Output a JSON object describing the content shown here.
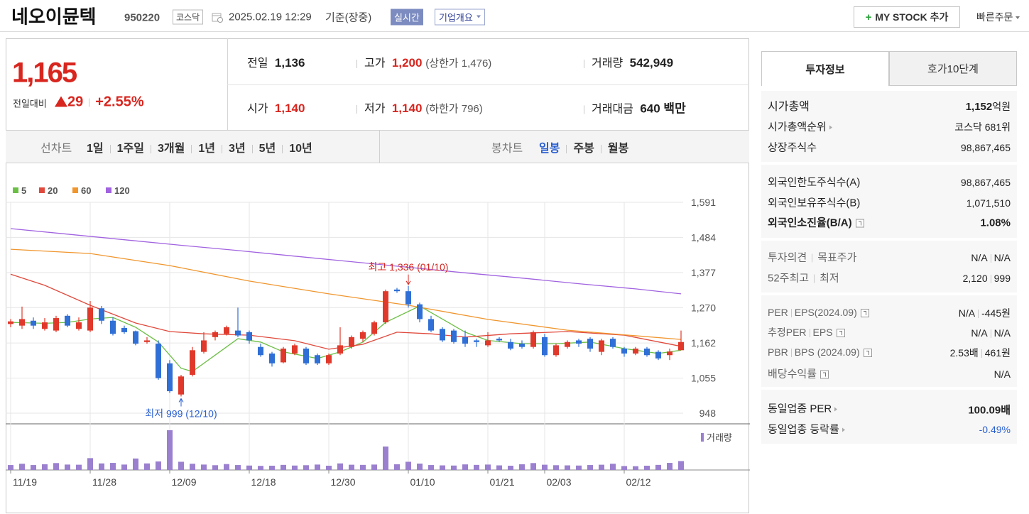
{
  "header": {
    "name": "네오이뮨텍",
    "code": "950220",
    "market": "코스닥",
    "datetime": "2025.02.19 12:29",
    "basis": "기준(장중)",
    "realtime": "실시간",
    "company": "기업개요",
    "my_stock": "MY STOCK 추가",
    "quick_order": "빠른주문"
  },
  "quote": {
    "price": "1,165",
    "change_label": "전일대비",
    "change": "29",
    "change_pct": "+2.55%",
    "stats": [
      {
        "label": "전일",
        "value": "1,136"
      },
      {
        "label": "고가",
        "value": "1,200",
        "note": "(상한가 1,476)"
      },
      {
        "label": "거래량",
        "value": "542,949"
      },
      {
        "label": "시가",
        "value": "1,140"
      },
      {
        "label": "저가",
        "value": "1,140",
        "note": "(하한가 796)"
      },
      {
        "label": "거래대금",
        "value": "640 백만"
      }
    ]
  },
  "period_tabs": {
    "line_chart": "선차트",
    "line_periods": [
      "1일",
      "1주일",
      "3개월",
      "1년",
      "3년",
      "5년",
      "10년"
    ],
    "candle_chart": "봉차트",
    "candle_periods": [
      "일봉",
      "주봉",
      "월봉"
    ]
  },
  "chart_data": {
    "type": "candlestick",
    "categories": [
      "11/19",
      null,
      null,
      null,
      null,
      null,
      null,
      "11/28",
      null,
      null,
      null,
      null,
      null,
      null,
      "12/09",
      null,
      null,
      null,
      null,
      null,
      null,
      "12/18",
      null,
      null,
      null,
      null,
      null,
      null,
      "12/30",
      null,
      null,
      null,
      null,
      null,
      null,
      "01/10",
      null,
      null,
      null,
      null,
      null,
      null,
      "01/21",
      null,
      null,
      null,
      null,
      "02/03",
      null,
      null,
      null,
      null,
      null,
      null,
      "02/12",
      null,
      null,
      null,
      null,
      null
    ],
    "open": [
      1220,
      1215,
      1230,
      1205,
      1200,
      1245,
      1205,
      1200,
      1268,
      1230,
      1208,
      1198,
      1165,
      1160,
      1100,
      1005,
      1065,
      1135,
      1180,
      1190,
      1200,
      1195,
      1150,
      1130,
      1103,
      1130,
      1145,
      1125,
      1100,
      1130,
      1150,
      1175,
      1190,
      1225,
      1325,
      1320,
      1280,
      1235,
      1205,
      1200,
      1180,
      1170,
      1155,
      1175,
      1165,
      1160,
      1150,
      1180,
      1125,
      1150,
      1170,
      1175,
      1135,
      1175,
      1145,
      1130,
      1145,
      1135,
      1125,
      1140
    ],
    "high": [
      1235,
      1273,
      1240,
      1238,
      1245,
      1250,
      1240,
      1290,
      1275,
      1240,
      1215,
      1200,
      1180,
      1170,
      1110,
      1065,
      1150,
      1195,
      1200,
      1215,
      1270,
      1200,
      1160,
      1135,
      1150,
      1160,
      1150,
      1130,
      1130,
      1210,
      1185,
      1200,
      1230,
      1325,
      1330,
      1336,
      1285,
      1245,
      1210,
      1205,
      1200,
      1175,
      1195,
      1180,
      1175,
      1170,
      1200,
      1190,
      1160,
      1170,
      1175,
      1180,
      1175,
      1180,
      1150,
      1150,
      1150,
      1140,
      1145,
      1200
    ],
    "low": [
      1210,
      1205,
      1205,
      1200,
      1195,
      1210,
      1200,
      1195,
      1220,
      1185,
      1190,
      1155,
      1160,
      1050,
      1010,
      999,
      1060,
      1130,
      1170,
      1185,
      1180,
      1160,
      1120,
      1090,
      1100,
      1125,
      1095,
      1095,
      1095,
      1125,
      1145,
      1165,
      1185,
      1220,
      1315,
      1270,
      1225,
      1195,
      1165,
      1160,
      1150,
      1150,
      1150,
      1165,
      1140,
      1145,
      1145,
      1120,
      1120,
      1145,
      1150,
      1135,
      1125,
      1145,
      1120,
      1125,
      1120,
      1110,
      1110,
      1140
    ],
    "close": [
      1228,
      1235,
      1215,
      1225,
      1238,
      1215,
      1225,
      1270,
      1230,
      1190,
      1195,
      1160,
      1170,
      1055,
      1015,
      1060,
      1140,
      1170,
      1195,
      1210,
      1185,
      1170,
      1125,
      1100,
      1145,
      1155,
      1100,
      1100,
      1125,
      1155,
      1180,
      1195,
      1225,
      1320,
      1320,
      1280,
      1235,
      1200,
      1170,
      1165,
      1160,
      1165,
      1170,
      1170,
      1145,
      1150,
      1195,
      1125,
      1155,
      1165,
      1160,
      1145,
      1170,
      1150,
      1130,
      1145,
      1125,
      1115,
      1136,
      1165
    ],
    "up_color": "#e0392b",
    "down_color": "#2f6fd6",
    "volume": {
      "name": "거래량",
      "color": "#9b80cf",
      "values": [
        300000,
        380000,
        300000,
        350000,
        420000,
        330000,
        320000,
        720000,
        400000,
        430000,
        330000,
        700000,
        400000,
        520000,
        2420000,
        500000,
        380000,
        330000,
        290000,
        360000,
        300000,
        270000,
        250000,
        260000,
        310000,
        270000,
        290000,
        330000,
        260000,
        400000,
        320000,
        310000,
        330000,
        1430000,
        350000,
        500000,
        390000,
        300000,
        280000,
        270000,
        340000,
        310000,
        330000,
        280000,
        260000,
        350000,
        420000,
        320000,
        290000,
        280000,
        270000,
        300000,
        320000,
        380000,
        240000,
        230000,
        260000,
        310000,
        430000,
        542949
      ]
    },
    "ylim": [
      948,
      1591
    ],
    "yticks": [
      948,
      {
        "value": 1055,
        "label": "1,055"
      },
      {
        "value": 1162,
        "label": "1,162"
      },
      {
        "value": 1270,
        "label": "1,270"
      },
      {
        "value": 1377,
        "label": "1,377"
      },
      {
        "value": 1484,
        "label": "1,484"
      },
      {
        "value": 1591,
        "label": "1,591"
      }
    ],
    "grid": true,
    "moving_averages": [
      {
        "name": "5",
        "color": "#6cbf45",
        "x": [
          0,
          3,
          5,
          7,
          9,
          11,
          13,
          14,
          15,
          16,
          18,
          20,
          22,
          24,
          27,
          29,
          31,
          33,
          36,
          38,
          40,
          42,
          45,
          48,
          51,
          54,
          57,
          59
        ],
        "values": [
          1225,
          1222,
          1225,
          1235,
          1240,
          1210,
          1165,
          1125,
          1085,
          1075,
          1125,
          1175,
          1165,
          1135,
          1115,
          1135,
          1165,
          1225,
          1275,
          1235,
          1195,
          1170,
          1160,
          1160,
          1165,
          1145,
          1130,
          1140
        ]
      },
      {
        "name": "20",
        "color": "#e0493c",
        "x": [
          0,
          3,
          7,
          11,
          14,
          17,
          21,
          25,
          28,
          31,
          34,
          37,
          40,
          44,
          49,
          54,
          59
        ],
        "values": [
          1372,
          1338,
          1277,
          1223,
          1197,
          1190,
          1186,
          1169,
          1143,
          1158,
          1195,
          1190,
          1180,
          1190,
          1197,
          1186,
          1152
        ]
      },
      {
        "name": "60",
        "color": "#f0962e",
        "x": [
          0,
          7,
          14,
          21,
          28,
          35,
          42,
          49,
          59
        ],
        "values": [
          1448,
          1435,
          1398,
          1351,
          1312,
          1277,
          1234,
          1201,
          1173
        ]
      },
      {
        "name": "120",
        "color": "#a163e0",
        "x": [
          0,
          5,
          10,
          15,
          20,
          25,
          30,
          35,
          40,
          45,
          50,
          55,
          59
        ],
        "values": [
          1511,
          1494,
          1477,
          1460,
          1444,
          1427,
          1410,
          1393,
          1376,
          1360,
          1343,
          1327,
          1312
        ]
      }
    ],
    "annotations": {
      "high": "최고 1,336 (01/10)",
      "low": "최저 999 (12/10)"
    }
  },
  "info_panel": {
    "tabs": [
      "투자정보",
      "호가10단계"
    ],
    "market_cap": {
      "label": "시가총액",
      "value": "1,152",
      "unit": "억원"
    },
    "market_cap_rank": {
      "label": "시가총액순위",
      "value": "코스닥 681위"
    },
    "listed_shares": {
      "label": "상장주식수",
      "value": "98,867,465"
    },
    "foreign_limit": {
      "label": "외국인한도주식수(A)",
      "value": "98,867,465"
    },
    "foreign_holding": {
      "label": "외국인보유주식수(B)",
      "value": "1,071,510"
    },
    "foreign_ratio": {
      "label": "외국인소진율(B/A)",
      "value": "1.08%"
    },
    "opinion": {
      "label": [
        "투자의견",
        "목표주가"
      ],
      "value": [
        "N/A",
        "N/A"
      ]
    },
    "week52": {
      "label": [
        "52주최고",
        "최저"
      ],
      "value": [
        "2,120",
        "999"
      ]
    },
    "per": {
      "label": [
        "PER",
        "EPS(2024.09)"
      ],
      "value": [
        "N/A",
        "-445원"
      ]
    },
    "est_per": {
      "label": [
        "추정PER",
        "EPS"
      ],
      "value": [
        "N/A",
        "N/A"
      ]
    },
    "pbr": {
      "label": [
        "PBR",
        "BPS (2024.09)"
      ],
      "value": [
        "2.53배",
        "461원"
      ]
    },
    "dividend": {
      "label": "배당수익률",
      "value": "N/A"
    },
    "sector_per": {
      "label": "동일업종 PER",
      "value": "100.09배"
    },
    "sector_change": {
      "label": "동일업종 등락률",
      "value": "-0.49%"
    }
  }
}
